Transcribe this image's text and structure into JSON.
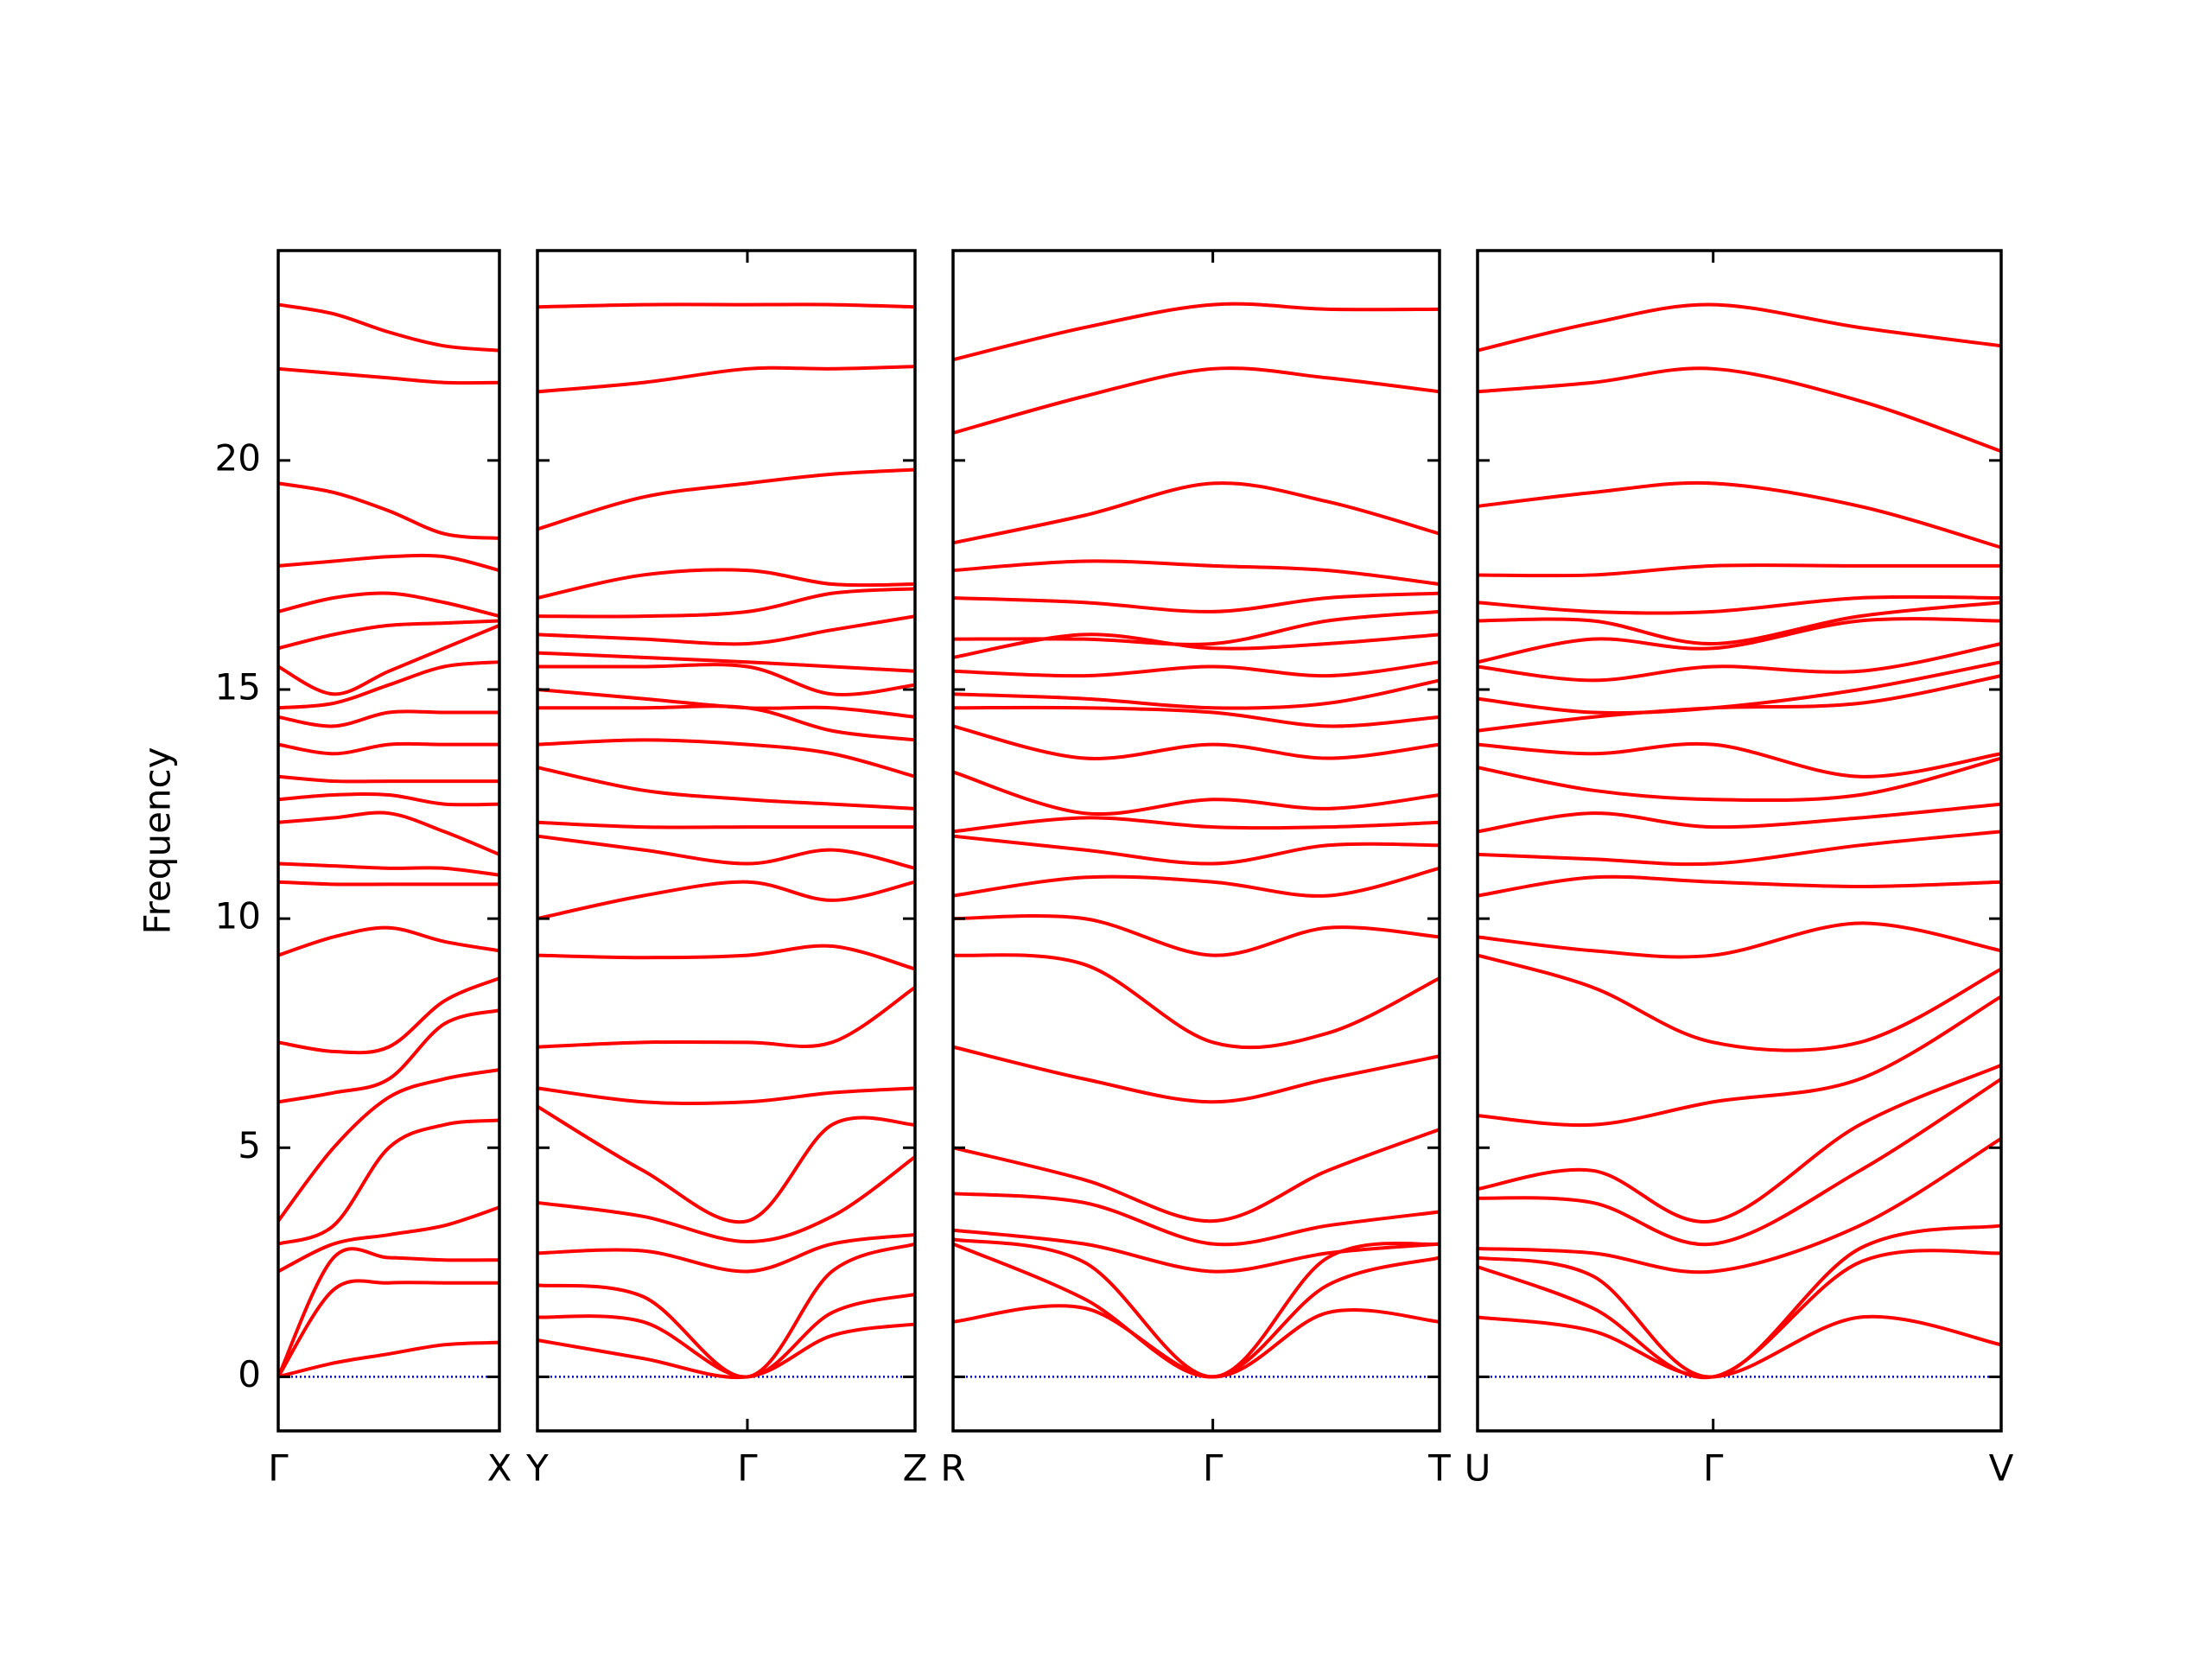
{
  "chart_data": {
    "type": "line",
    "ylabel": "Frequency",
    "ylim": [
      -1.18,
      24.58
    ],
    "yticks": [
      0,
      5,
      10,
      15,
      20
    ],
    "color": "#ff0000",
    "hline": {
      "value": 0,
      "color": "#0000cc",
      "style": "dotted"
    },
    "panels": [
      {
        "xlim": [
          0,
          1
        ],
        "xticks": [
          {
            "value": 0,
            "label": "Γ"
          },
          {
            "value": 1,
            "label": "X"
          }
        ],
        "x": [
          0,
          0.25,
          0.5,
          0.75,
          1
        ],
        "series": [
          {
            "values": [
              0,
              0.3,
              0.5,
              0.7,
              0.75
            ]
          },
          {
            "values": [
              0,
              1.9,
              2.05,
              2.05,
              2.05
            ]
          },
          {
            "values": [
              0,
              2.6,
              2.6,
              2.55,
              2.55
            ]
          },
          {
            "values": [
              2.3,
              2.9,
              3.1,
              3.3,
              3.7
            ]
          },
          {
            "values": [
              2.9,
              3.3,
              5.0,
              5.5,
              5.6
            ]
          },
          {
            "values": [
              3.4,
              5.0,
              6.1,
              6.5,
              6.7
            ]
          },
          {
            "values": [
              6.0,
              6.2,
              6.5,
              7.7,
              8.0
            ]
          },
          {
            "values": [
              7.3,
              7.1,
              7.2,
              8.2,
              8.7
            ]
          },
          {
            "values": [
              9.2,
              9.6,
              9.8,
              9.5,
              9.3
            ]
          },
          {
            "values": [
              10.8,
              10.75,
              10.75,
              10.75,
              10.75
            ]
          },
          {
            "values": [
              11.2,
              11.15,
              11.1,
              11.1,
              10.95
            ]
          },
          {
            "values": [
              12.1,
              12.2,
              12.3,
              11.9,
              11.4
            ]
          },
          {
            "values": [
              12.6,
              12.7,
              12.7,
              12.5,
              12.5
            ]
          },
          {
            "values": [
              13.1,
              13.0,
              13.0,
              13.0,
              13.0
            ]
          },
          {
            "values": [
              13.8,
              13.6,
              13.8,
              13.8,
              13.8
            ]
          },
          {
            "values": [
              14.4,
              14.2,
              14.5,
              14.5,
              14.5
            ]
          },
          {
            "values": [
              14.6,
              14.7,
              15.1,
              15.5,
              15.6
            ]
          },
          {
            "values": [
              15.5,
              14.9,
              15.4,
              15.9,
              16.4
            ]
          },
          {
            "values": [
              15.9,
              16.2,
              16.4,
              16.45,
              16.5
            ]
          },
          {
            "values": [
              16.7,
              17.0,
              17.1,
              16.9,
              16.6
            ]
          },
          {
            "values": [
              17.7,
              17.8,
              17.9,
              17.9,
              17.6
            ]
          },
          {
            "values": [
              19.5,
              19.3,
              18.9,
              18.4,
              18.3
            ]
          },
          {
            "values": [
              22.0,
              21.9,
              21.8,
              21.7,
              21.7
            ]
          },
          {
            "values": [
              23.4,
              23.2,
              22.8,
              22.5,
              22.4
            ]
          }
        ]
      },
      {
        "xlim": [
          0,
          1
        ],
        "xticks": [
          {
            "value": 0,
            "label": "Y"
          },
          {
            "value": 0.556,
            "label": "Γ"
          },
          {
            "value": 1,
            "label": "Z"
          }
        ],
        "x": [
          0,
          0.28,
          0.556,
          0.78,
          1
        ],
        "series": [
          {
            "values": [
              0.8,
              0.4,
              0,
              0.9,
              1.15
            ]
          },
          {
            "values": [
              1.3,
              1.2,
              0,
              1.4,
              1.8
            ]
          },
          {
            "values": [
              2.0,
              1.75,
              0,
              2.3,
              2.9
            ]
          },
          {
            "values": [
              2.7,
              2.75,
              2.3,
              2.9,
              3.1
            ]
          },
          {
            "values": [
              3.8,
              3.5,
              2.95,
              3.5,
              4.8
            ]
          },
          {
            "values": [
              5.9,
              4.5,
              3.4,
              5.5,
              5.5
            ]
          },
          {
            "values": [
              6.3,
              6.0,
              6.0,
              6.2,
              6.3
            ]
          },
          {
            "values": [
              7.2,
              7.3,
              7.3,
              7.3,
              8.5
            ]
          },
          {
            "values": [
              9.2,
              9.15,
              9.2,
              9.4,
              8.9
            ]
          },
          {
            "values": [
              10.0,
              10.5,
              10.8,
              10.4,
              10.8
            ]
          },
          {
            "values": [
              11.8,
              11.5,
              11.2,
              11.5,
              11.1
            ]
          },
          {
            "values": [
              12.1,
              12.0,
              12.0,
              12.0,
              12.0
            ]
          },
          {
            "values": [
              13.3,
              12.8,
              12.6,
              12.5,
              12.4
            ]
          },
          {
            "values": [
              13.8,
              13.9,
              13.8,
              13.6,
              13.1
            ]
          },
          {
            "values": [
              14.6,
              14.6,
              14.6,
              14.1,
              13.9
            ]
          },
          {
            "values": [
              15.0,
              14.8,
              14.6,
              14.6,
              14.4
            ]
          },
          {
            "values": [
              15.5,
              15.5,
              15.5,
              14.9,
              15.1
            ]
          },
          {
            "values": [
              15.8,
              15.7,
              15.6,
              15.5,
              15.4
            ]
          },
          {
            "values": [
              16.2,
              16.1,
              16.0,
              16.3,
              16.6
            ]
          },
          {
            "values": [
              16.6,
              16.6,
              16.7,
              17.1,
              17.2
            ]
          },
          {
            "values": [
              17.0,
              17.5,
              17.6,
              17.3,
              17.3
            ]
          },
          {
            "values": [
              18.5,
              19.2,
              19.5,
              19.7,
              19.8
            ]
          },
          {
            "values": [
              21.5,
              21.7,
              22.0,
              22.0,
              22.05
            ]
          },
          {
            "values": [
              23.35,
              23.4,
              23.4,
              23.4,
              23.35
            ]
          }
        ]
      },
      {
        "xlim": [
          0,
          1
        ],
        "xticks": [
          {
            "value": 0,
            "label": "R"
          },
          {
            "value": 0.534,
            "label": "Γ"
          },
          {
            "value": 1,
            "label": "T"
          }
        ],
        "x": [
          0,
          0.27,
          0.534,
          0.77,
          1
        ],
        "series": [
          {
            "values": [
              1.2,
              1.5,
              0,
              1.4,
              1.2
            ]
          },
          {
            "values": [
              2.9,
              1.7,
              0,
              2.0,
              2.6
            ]
          },
          {
            "values": [
              3.0,
              2.5,
              0,
              2.6,
              2.9
            ]
          },
          {
            "values": [
              3.2,
              2.9,
              2.3,
              2.7,
              2.9
            ]
          },
          {
            "values": [
              4.0,
              3.8,
              2.9,
              3.3,
              3.6
            ]
          },
          {
            "values": [
              5.0,
              4.3,
              3.4,
              4.5,
              5.4
            ]
          },
          {
            "values": [
              7.2,
              6.5,
              6.0,
              6.5,
              7.0
            ]
          },
          {
            "values": [
              9.2,
              9.0,
              7.3,
              7.5,
              8.7
            ]
          },
          {
            "values": [
              10.0,
              10.0,
              9.2,
              9.8,
              9.6
            ]
          },
          {
            "values": [
              10.5,
              10.9,
              10.8,
              10.5,
              11.1
            ]
          },
          {
            "values": [
              11.8,
              11.5,
              11.2,
              11.6,
              11.6
            ]
          },
          {
            "values": [
              11.9,
              12.2,
              12.0,
              12.0,
              12.1
            ]
          },
          {
            "values": [
              13.2,
              12.3,
              12.6,
              12.4,
              12.7
            ]
          },
          {
            "values": [
              14.2,
              13.5,
              13.8,
              13.5,
              13.8
            ]
          },
          {
            "values": [
              14.6,
              14.6,
              14.5,
              14.2,
              14.4
            ]
          },
          {
            "values": [
              14.9,
              14.8,
              14.6,
              14.7,
              15.2
            ]
          },
          {
            "values": [
              15.4,
              15.3,
              15.5,
              15.3,
              15.6
            ]
          },
          {
            "values": [
              15.7,
              16.2,
              15.9,
              16.0,
              16.2
            ]
          },
          {
            "values": [
              16.1,
              16.1,
              16.0,
              16.5,
              16.7
            ]
          },
          {
            "values": [
              17.0,
              16.9,
              16.7,
              17.0,
              17.1
            ]
          },
          {
            "values": [
              17.6,
              17.8,
              17.7,
              17.6,
              17.3
            ]
          },
          {
            "values": [
              18.2,
              18.8,
              19.5,
              19.1,
              18.4
            ]
          },
          {
            "values": [
              20.6,
              21.4,
              22.0,
              21.8,
              21.5
            ]
          },
          {
            "values": [
              22.2,
              22.9,
              23.4,
              23.3,
              23.3
            ]
          }
        ]
      },
      {
        "xlim": [
          0,
          1
        ],
        "xticks": [
          {
            "value": 0,
            "label": "U"
          },
          {
            "value": 0.45,
            "label": "Γ"
          },
          {
            "value": 1,
            "label": "V"
          }
        ],
        "x": [
          0,
          0.22,
          0.45,
          0.73,
          1
        ],
        "series": [
          {
            "values": [
              1.3,
              1.0,
              0,
              1.3,
              0.7
            ]
          },
          {
            "values": [
              2.4,
              1.5,
              0,
              2.5,
              2.7
            ]
          },
          {
            "values": [
              2.6,
              2.2,
              0,
              2.8,
              3.3
            ]
          },
          {
            "values": [
              2.8,
              2.7,
              2.3,
              3.3,
              5.2
            ]
          },
          {
            "values": [
              3.9,
              3.8,
              2.9,
              4.5,
              6.5
            ]
          },
          {
            "values": [
              4.1,
              4.5,
              3.4,
              5.5,
              6.8
            ]
          },
          {
            "values": [
              5.7,
              5.5,
              6.0,
              6.5,
              8.3
            ]
          },
          {
            "values": [
              9.2,
              8.5,
              7.3,
              7.3,
              8.9
            ]
          },
          {
            "values": [
              9.6,
              9.3,
              9.2,
              9.9,
              9.3
            ]
          },
          {
            "values": [
              10.5,
              10.9,
              10.8,
              10.7,
              10.8
            ]
          },
          {
            "values": [
              11.4,
              11.3,
              11.2,
              11.6,
              11.9
            ]
          },
          {
            "values": [
              11.9,
              12.3,
              12.0,
              12.2,
              12.5
            ]
          },
          {
            "values": [
              13.3,
              12.8,
              12.6,
              12.7,
              13.5
            ]
          },
          {
            "values": [
              13.8,
              13.6,
              13.8,
              13.1,
              13.6
            ]
          },
          {
            "values": [
              14.1,
              14.4,
              14.6,
              14.7,
              15.3
            ]
          },
          {
            "values": [
              14.8,
              14.5,
              14.6,
              15.0,
              15.6
            ]
          },
          {
            "values": [
              15.5,
              15.2,
              15.5,
              15.4,
              16.0
            ]
          },
          {
            "values": [
              15.6,
              16.1,
              15.9,
              16.5,
              16.5
            ]
          },
          {
            "values": [
              16.5,
              16.5,
              16.0,
              16.6,
              16.9
            ]
          },
          {
            "values": [
              16.9,
              16.7,
              16.7,
              17.0,
              17.0
            ]
          },
          {
            "values": [
              17.5,
              17.5,
              17.7,
              17.7,
              17.7
            ]
          },
          {
            "values": [
              19.0,
              19.3,
              19.5,
              19.0,
              18.1
            ]
          },
          {
            "values": [
              21.5,
              21.7,
              22.0,
              21.3,
              20.2
            ]
          },
          {
            "values": [
              22.4,
              23.0,
              23.4,
              22.9,
              22.5
            ]
          }
        ]
      }
    ]
  }
}
